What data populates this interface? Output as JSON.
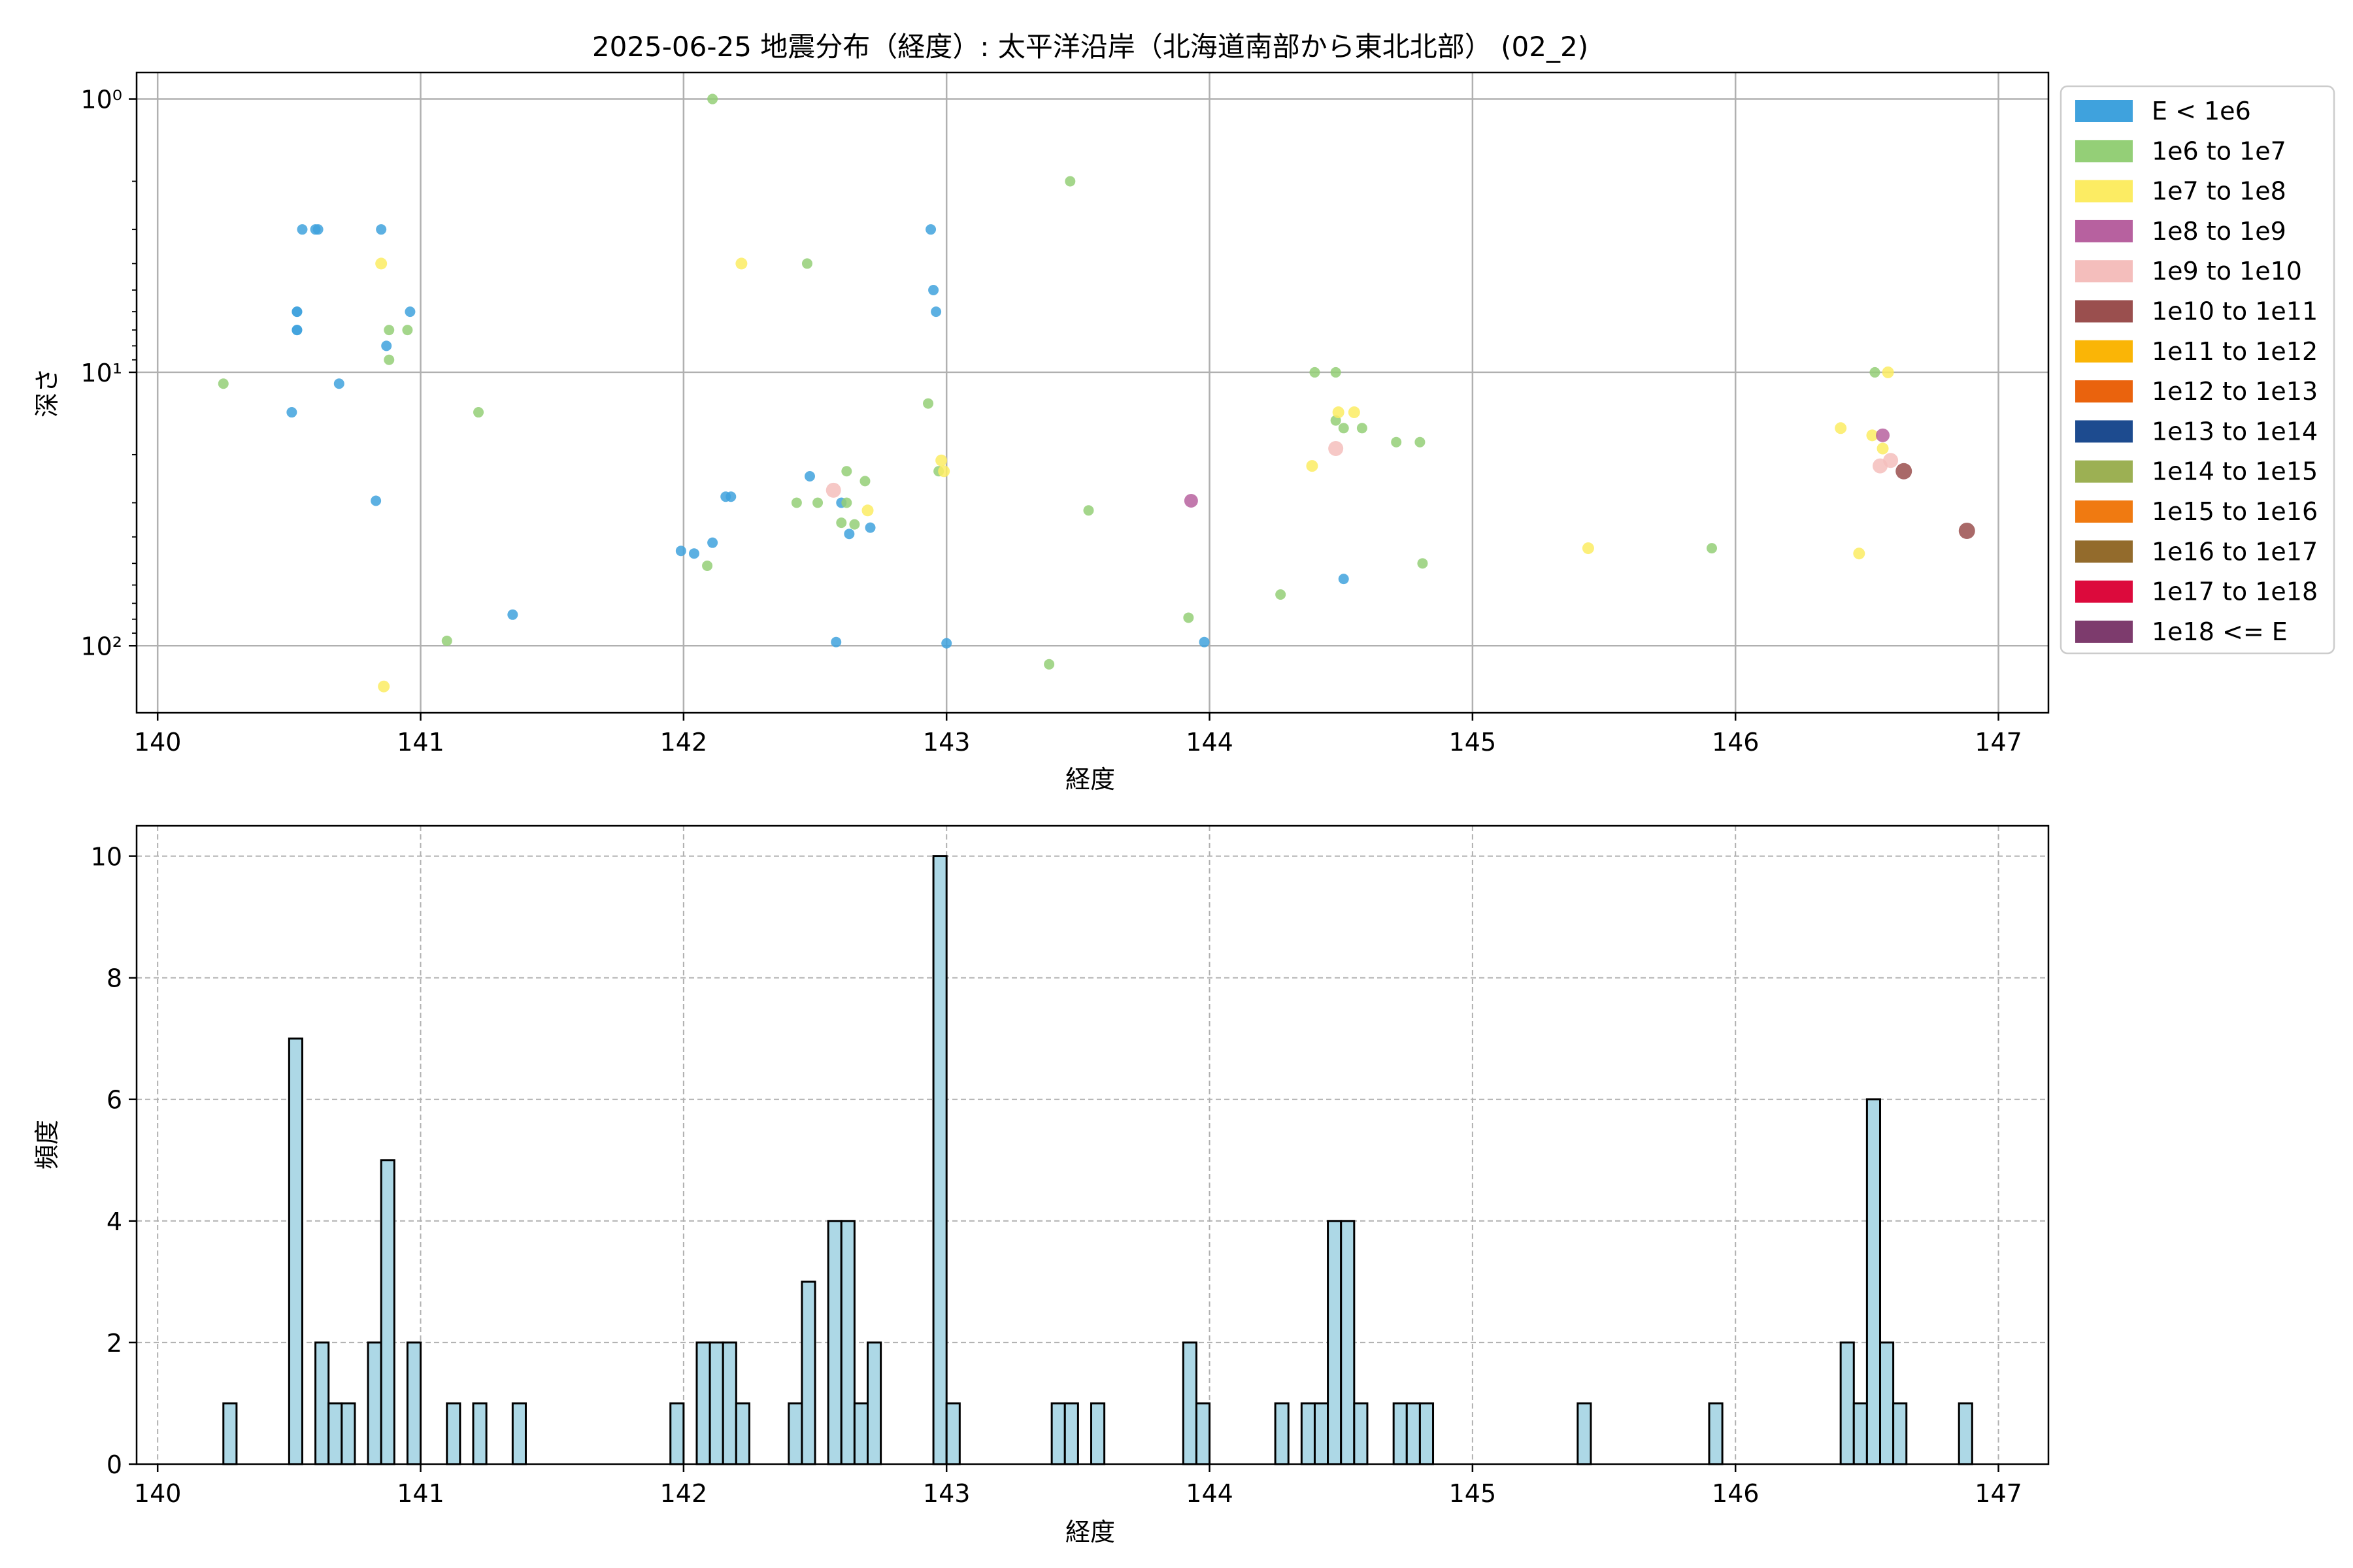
{
  "figure": {
    "title": "2025-06-25 地震分布（経度）: 太平洋沿岸（北海道南部から東北北部） (02_2)"
  },
  "chart_data": [
    {
      "type": "scatter",
      "xlabel": "経度",
      "ylabel": "深さ",
      "xlim": [
        139.92,
        147.19
      ],
      "ylim": [
        176,
        0.8
      ],
      "y_scale": "log",
      "y_inverted": true,
      "grid": true,
      "x_ticks": [
        "140",
        "141",
        "142",
        "143",
        "144",
        "145",
        "146",
        "147"
      ],
      "y_ticks": [
        {
          "value": 1,
          "label": "10⁰"
        },
        {
          "value": 10,
          "label": "10¹"
        },
        {
          "value": 100,
          "label": "10²"
        }
      ],
      "legend": {
        "placement": "outside-right",
        "entries": [
          {
            "label": "E < 1e6",
            "color": "#3fa2dd"
          },
          {
            "label": "1e6 to 1e7",
            "color": "#94cf77"
          },
          {
            "label": "1e7 to 1e8",
            "color": "#fcec63"
          },
          {
            "label": "1e8 to 1e9",
            "color": "#b7619f"
          },
          {
            "label": "1e9 to 1e10",
            "color": "#f4bebc"
          },
          {
            "label": "1e10 to 1e11",
            "color": "#9a4f4e"
          },
          {
            "label": "1e11 to 1e12",
            "color": "#fab506"
          },
          {
            "label": "1e12 to 1e13",
            "color": "#ea630d"
          },
          {
            "label": "1e13 to 1e14",
            "color": "#1d4b8f"
          },
          {
            "label": "1e14 to 1e15",
            "color": "#9cb053"
          },
          {
            "label": "1e15 to 1e16",
            "color": "#f07a11"
          },
          {
            "label": "1e16 to 1e17",
            "color": "#936b2c"
          },
          {
            "label": "1e17 to 1e18",
            "color": "#dc0a3c"
          },
          {
            "label": "1e18 <= E",
            "color": "#7d3b6d"
          }
        ]
      },
      "series": [
        {
          "name": "E < 1e6",
          "points": [
            [
              140.51,
              14
            ],
            [
              140.55,
              3
            ],
            [
              140.53,
              6
            ],
            [
              140.53,
              7
            ],
            [
              140.53,
              6
            ],
            [
              140.53,
              7
            ],
            [
              140.6,
              3
            ],
            [
              140.61,
              3
            ],
            [
              140.69,
              11
            ],
            [
              140.83,
              29.5
            ],
            [
              140.85,
              3
            ],
            [
              140.87,
              8
            ],
            [
              140.96,
              6
            ],
            [
              141.35,
              77
            ],
            [
              141.99,
              45
            ],
            [
              142.04,
              46
            ],
            [
              142.11,
              42
            ],
            [
              142.16,
              28.5
            ],
            [
              142.18,
              28.5
            ],
            [
              142.48,
              24
            ],
            [
              142.58,
              97
            ],
            [
              142.6,
              30
            ],
            [
              142.63,
              39
            ],
            [
              142.71,
              37
            ],
            [
              142.94,
              3
            ],
            [
              142.95,
              5
            ],
            [
              142.96,
              6
            ],
            [
              143.0,
              98
            ],
            [
              143.98,
              97
            ],
            [
              144.51,
              57
            ]
          ]
        },
        {
          "name": "1e6 to 1e7",
          "points": [
            [
              140.25,
              11
            ],
            [
              140.88,
              7
            ],
            [
              140.88,
              9
            ],
            [
              140.95,
              7
            ],
            [
              141.1,
              96
            ],
            [
              141.22,
              14
            ],
            [
              142.09,
              51
            ],
            [
              142.11,
              1
            ],
            [
              142.43,
              30
            ],
            [
              142.47,
              4
            ],
            [
              142.51,
              30
            ],
            [
              142.6,
              35.5
            ],
            [
              142.62,
              30
            ],
            [
              142.65,
              36
            ],
            [
              142.62,
              23
            ],
            [
              142.69,
              25
            ],
            [
              142.93,
              13
            ],
            [
              142.97,
              23
            ],
            [
              143.39,
              117
            ],
            [
              143.47,
              2
            ],
            [
              143.54,
              32
            ],
            [
              143.92,
              79
            ],
            [
              144.27,
              65
            ],
            [
              144.4,
              10
            ],
            [
              144.48,
              10
            ],
            [
              144.48,
              15
            ],
            [
              144.51,
              16
            ],
            [
              144.58,
              16
            ],
            [
              144.71,
              18
            ],
            [
              144.8,
              18
            ],
            [
              144.81,
              50
            ],
            [
              145.91,
              44
            ],
            [
              146.53,
              10
            ]
          ]
        },
        {
          "name": "1e7 to 1e8",
          "points": [
            [
              140.85,
              4
            ],
            [
              140.86,
              141
            ],
            [
              142.22,
              4
            ],
            [
              142.98,
              21
            ],
            [
              142.99,
              23
            ],
            [
              142.7,
              32
            ],
            [
              144.39,
              22
            ],
            [
              144.49,
              14
            ],
            [
              144.55,
              14
            ],
            [
              145.44,
              44
            ],
            [
              146.4,
              16
            ],
            [
              146.47,
              46
            ],
            [
              146.52,
              17
            ],
            [
              146.56,
              19
            ],
            [
              146.58,
              10
            ]
          ]
        },
        {
          "name": "1e8 to 1e9",
          "points": [
            [
              143.93,
              29.5
            ],
            [
              146.56,
              17
            ]
          ]
        },
        {
          "name": "1e9 to 1e10",
          "points": [
            [
              142.57,
              27
            ],
            [
              144.48,
              19
            ],
            [
              146.55,
              22
            ],
            [
              146.59,
              21
            ]
          ]
        },
        {
          "name": "1e10 to 1e11",
          "points": [
            [
              146.64,
              23
            ],
            [
              146.88,
              38
            ]
          ]
        }
      ]
    },
    {
      "type": "bar",
      "xlabel": "経度",
      "ylabel": "頻度",
      "xlim": [
        139.92,
        147.19
      ],
      "ylim": [
        0,
        10.5
      ],
      "grid": true,
      "x_ticks": [
        "140",
        "141",
        "142",
        "143",
        "144",
        "145",
        "146",
        "147"
      ],
      "y_ticks": [
        "0",
        "2",
        "4",
        "6",
        "8",
        "10"
      ],
      "bar_color": "#add8e6",
      "edge_color": "#000000",
      "bin_width": 0.05,
      "bins": [
        [
          140.25,
          1
        ],
        [
          140.5,
          7
        ],
        [
          140.6,
          2
        ],
        [
          140.65,
          1
        ],
        [
          140.7,
          1
        ],
        [
          140.8,
          2
        ],
        [
          140.85,
          5
        ],
        [
          140.95,
          2
        ],
        [
          141.1,
          1
        ],
        [
          141.2,
          1
        ],
        [
          141.35,
          1
        ],
        [
          141.95,
          1
        ],
        [
          142.05,
          2
        ],
        [
          142.1,
          2
        ],
        [
          142.15,
          2
        ],
        [
          142.2,
          1
        ],
        [
          142.4,
          1
        ],
        [
          142.45,
          3
        ],
        [
          142.55,
          4
        ],
        [
          142.6,
          4
        ],
        [
          142.65,
          1
        ],
        [
          142.7,
          2
        ],
        [
          142.95,
          10
        ],
        [
          143.0,
          1
        ],
        [
          143.4,
          1
        ],
        [
          143.45,
          1
        ],
        [
          143.55,
          1
        ],
        [
          143.9,
          2
        ],
        [
          143.95,
          1
        ],
        [
          144.25,
          1
        ],
        [
          144.35,
          1
        ],
        [
          144.4,
          1
        ],
        [
          144.45,
          4
        ],
        [
          144.5,
          4
        ],
        [
          144.55,
          1
        ],
        [
          144.7,
          1
        ],
        [
          144.75,
          1
        ],
        [
          144.8,
          1
        ],
        [
          145.4,
          1
        ],
        [
          145.9,
          1
        ],
        [
          146.4,
          2
        ],
        [
          146.45,
          1
        ],
        [
          146.5,
          6
        ],
        [
          146.55,
          2
        ],
        [
          146.6,
          1
        ],
        [
          146.85,
          1
        ]
      ]
    }
  ]
}
